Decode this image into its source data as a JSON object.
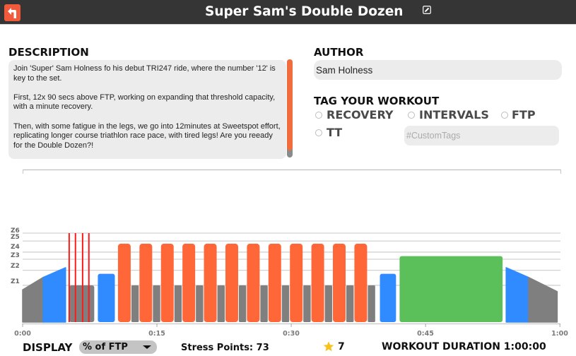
{
  "header": {
    "title": "Super Sam's Double Dozen",
    "back_icon": "back-arrow-icon",
    "edit_icon": "edit-icon"
  },
  "description": {
    "label": "DESCRIPTION",
    "paragraphs": [
      "Join 'Super' Sam Holness fo his debut TRI247 ride, where the number '12' is key to the set.",
      "First, 12x 90 secs above FTP, working on expanding that threshold capacity, with a minute recovery.",
      "Then, with some fatigue in the legs, we go into 12minutes at Sweetspot effort, replicating longer course triathlon race pace, with tired legs!  Are you reeady for the Double Dozen?!"
    ]
  },
  "author": {
    "label": "AUTHOR",
    "value": "Sam Holness"
  },
  "tags": {
    "label": "TAG YOUR WORKOUT",
    "options": [
      {
        "label": "RECOVERY",
        "selected": false
      },
      {
        "label": "INTERVALS",
        "selected": false
      },
      {
        "label": "FTP",
        "selected": false
      },
      {
        "label": "TT",
        "selected": false
      }
    ],
    "custom_placeholder": "#CustomTags",
    "custom_value": ""
  },
  "colors": {
    "accent": "#f25a3c",
    "scroll_thumb": "#f26d3d",
    "gray": "#7f7f7f",
    "blue": "#2f8bff",
    "orange": "#ff6638",
    "green": "#5bbf5a",
    "marker": "#ff1a1a"
  },
  "chart": {
    "zones": [
      {
        "label": "Z1",
        "pct": 60
      },
      {
        "label": "Z2",
        "pct": 77
      },
      {
        "label": "Z3",
        "pct": 89.5
      },
      {
        "label": "Z4",
        "pct": 97.5
      },
      {
        "label": "Z5",
        "pct": 110
      },
      {
        "label": "Z6",
        "pct": 119
      }
    ],
    "x_ticks": [
      "0:00",
      "0:15",
      "0:30",
      "0:45",
      "1:00"
    ],
    "x_range_min": [
      0,
      60
    ]
  },
  "workout": {
    "segments": [
      {
        "type": "warmup",
        "start": 0,
        "end": 2.3,
        "from": 55,
        "to": 69,
        "color": "gray"
      },
      {
        "type": "warmup",
        "start": 2.3,
        "end": 4.8,
        "from": 69,
        "to": 80,
        "color": "blue"
      },
      {
        "type": "steady",
        "start": 5.2,
        "end": 8.0,
        "power": 60,
        "color": "gray"
      },
      {
        "type": "steady",
        "start": 8.4,
        "end": 10.3,
        "power": 73,
        "color": "blue"
      },
      {
        "type": "intervals",
        "repeat": 12,
        "start": 10.65,
        "on_duration": 1.42,
        "off_duration": 0.98,
        "on_power": 107,
        "off_power": 60,
        "on_color": "orange",
        "off_color": "gray"
      },
      {
        "type": "steady",
        "start": 39.9,
        "end": 41.7,
        "power": 73,
        "color": "blue"
      },
      {
        "type": "steady",
        "start": 42.1,
        "end": 53.6,
        "power": 93,
        "color": "green"
      },
      {
        "type": "cooldown",
        "start": 54.0,
        "end": 56.5,
        "from": 80,
        "to": 69,
        "color": "blue"
      },
      {
        "type": "cooldown",
        "start": 56.5,
        "end": 59.7,
        "from": 69,
        "to": 53,
        "color": "gray"
      }
    ],
    "markers": [
      5.2,
      5.9,
      6.7,
      7.4
    ]
  },
  "footer": {
    "display_label": "DISPLAY",
    "display_value": "% of FTP",
    "stress_points": "Stress Points: 73",
    "rating": "7",
    "star_icon": "star-icon",
    "duration": "WORKOUT DURATION 1:00:00"
  }
}
